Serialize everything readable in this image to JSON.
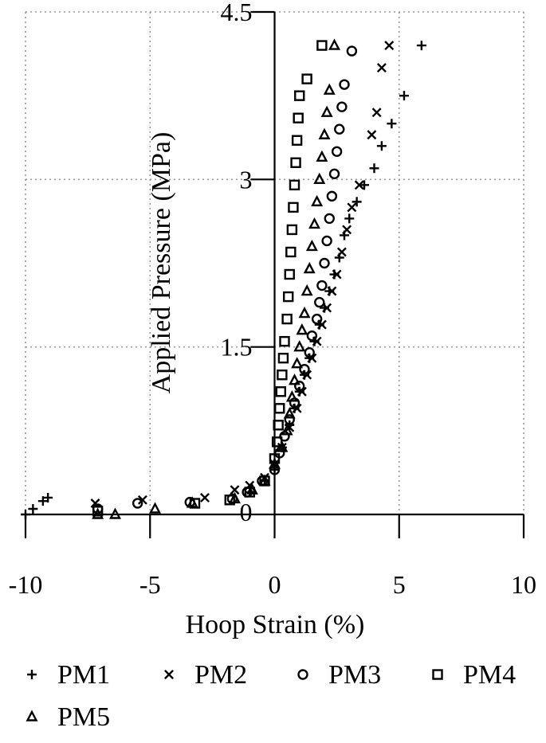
{
  "chart_data": {
    "type": "scatter",
    "title": "",
    "xlabel": "Hoop Strain (%)",
    "ylabel": "Applied Pressure (MPa)",
    "xlim": [
      -10,
      10
    ],
    "ylim": [
      0,
      4.5
    ],
    "x_ticks": [
      "-10",
      "-5",
      "0",
      "5",
      "10"
    ],
    "y_ticks": [
      "0",
      "1.5",
      "3",
      "4.5"
    ],
    "grid": true,
    "legend_position": "bottom",
    "series": [
      {
        "name": "PM1",
        "marker": "plus",
        "points": [
          [
            -10.0,
            0.0
          ],
          [
            -9.7,
            0.05
          ],
          [
            -9.3,
            0.12
          ],
          [
            -9.1,
            0.15
          ],
          [
            -1.0,
            0.2
          ],
          [
            -0.4,
            0.3
          ],
          [
            0.0,
            0.4
          ],
          [
            0.3,
            0.6
          ],
          [
            0.6,
            0.8
          ],
          [
            0.8,
            0.95
          ],
          [
            1.0,
            1.1
          ],
          [
            1.2,
            1.25
          ],
          [
            1.4,
            1.4
          ],
          [
            1.6,
            1.55
          ],
          [
            1.8,
            1.7
          ],
          [
            2.0,
            1.85
          ],
          [
            2.2,
            2.0
          ],
          [
            2.4,
            2.15
          ],
          [
            2.6,
            2.3
          ],
          [
            2.8,
            2.5
          ],
          [
            3.0,
            2.65
          ],
          [
            3.3,
            2.8
          ],
          [
            3.6,
            2.95
          ],
          [
            4.0,
            3.1
          ],
          [
            4.3,
            3.3
          ],
          [
            4.7,
            3.5
          ],
          [
            5.2,
            3.75
          ],
          [
            5.9,
            4.2
          ]
        ]
      },
      {
        "name": "PM2",
        "marker": "x",
        "points": [
          [
            -7.2,
            0.1
          ],
          [
            -5.3,
            0.13
          ],
          [
            -2.8,
            0.15
          ],
          [
            -1.6,
            0.22
          ],
          [
            -1.0,
            0.26
          ],
          [
            -0.4,
            0.33
          ],
          [
            0.0,
            0.45
          ],
          [
            0.3,
            0.6
          ],
          [
            0.6,
            0.78
          ],
          [
            0.9,
            0.95
          ],
          [
            1.1,
            1.1
          ],
          [
            1.3,
            1.25
          ],
          [
            1.5,
            1.4
          ],
          [
            1.7,
            1.55
          ],
          [
            1.9,
            1.7
          ],
          [
            2.1,
            1.85
          ],
          [
            2.3,
            2.0
          ],
          [
            2.5,
            2.15
          ],
          [
            2.7,
            2.35
          ],
          [
            2.9,
            2.55
          ],
          [
            3.1,
            2.75
          ],
          [
            3.4,
            2.95
          ],
          [
            3.9,
            3.4
          ],
          [
            4.1,
            3.6
          ],
          [
            4.3,
            4.0
          ],
          [
            4.6,
            4.2
          ]
        ]
      },
      {
        "name": "PM3",
        "marker": "circle",
        "points": [
          [
            -7.1,
            0.05
          ],
          [
            -5.5,
            0.1
          ],
          [
            -3.4,
            0.11
          ],
          [
            -1.7,
            0.14
          ],
          [
            -1.1,
            0.2
          ],
          [
            -0.5,
            0.3
          ],
          [
            0.0,
            0.4
          ],
          [
            0.2,
            0.55
          ],
          [
            0.4,
            0.7
          ],
          [
            0.6,
            0.85
          ],
          [
            0.8,
            1.0
          ],
          [
            1.0,
            1.15
          ],
          [
            1.2,
            1.3
          ],
          [
            1.4,
            1.45
          ],
          [
            1.5,
            1.6
          ],
          [
            1.7,
            1.75
          ],
          [
            1.8,
            1.9
          ],
          [
            1.9,
            2.05
          ],
          [
            2.0,
            2.25
          ],
          [
            2.1,
            2.45
          ],
          [
            2.2,
            2.65
          ],
          [
            2.3,
            2.85
          ],
          [
            2.4,
            3.05
          ],
          [
            2.5,
            3.25
          ],
          [
            2.6,
            3.45
          ],
          [
            2.7,
            3.65
          ],
          [
            2.8,
            3.85
          ],
          [
            3.1,
            4.15
          ]
        ]
      },
      {
        "name": "PM4",
        "marker": "square",
        "points": [
          [
            -7.1,
            0.03
          ],
          [
            -3.2,
            0.1
          ],
          [
            -1.8,
            0.13
          ],
          [
            -1.0,
            0.2
          ],
          [
            -0.4,
            0.3
          ],
          [
            0.0,
            0.5
          ],
          [
            0.1,
            0.65
          ],
          [
            0.15,
            0.8
          ],
          [
            0.2,
            0.95
          ],
          [
            0.25,
            1.1
          ],
          [
            0.3,
            1.25
          ],
          [
            0.35,
            1.4
          ],
          [
            0.4,
            1.55
          ],
          [
            0.5,
            1.75
          ],
          [
            0.55,
            1.95
          ],
          [
            0.6,
            2.15
          ],
          [
            0.65,
            2.35
          ],
          [
            0.7,
            2.55
          ],
          [
            0.75,
            2.75
          ],
          [
            0.8,
            2.95
          ],
          [
            0.85,
            3.15
          ],
          [
            0.9,
            3.35
          ],
          [
            0.95,
            3.55
          ],
          [
            1.0,
            3.75
          ],
          [
            1.3,
            3.9
          ],
          [
            1.9,
            4.2
          ]
        ]
      },
      {
        "name": "PM5",
        "marker": "triangle",
        "points": [
          [
            -7.1,
            0.0
          ],
          [
            -6.4,
            0.0
          ],
          [
            -4.8,
            0.05
          ],
          [
            -3.3,
            0.1
          ],
          [
            -1.6,
            0.14
          ],
          [
            -0.9,
            0.22
          ],
          [
            -0.4,
            0.3
          ],
          [
            0.0,
            0.45
          ],
          [
            0.3,
            0.6
          ],
          [
            0.5,
            0.75
          ],
          [
            0.6,
            0.9
          ],
          [
            0.7,
            1.05
          ],
          [
            0.8,
            1.2
          ],
          [
            0.9,
            1.35
          ],
          [
            1.0,
            1.5
          ],
          [
            1.1,
            1.65
          ],
          [
            1.2,
            1.8
          ],
          [
            1.3,
            2.0
          ],
          [
            1.4,
            2.2
          ],
          [
            1.5,
            2.4
          ],
          [
            1.6,
            2.6
          ],
          [
            1.7,
            2.8
          ],
          [
            1.8,
            3.0
          ],
          [
            1.9,
            3.2
          ],
          [
            2.0,
            3.4
          ],
          [
            2.1,
            3.6
          ],
          [
            2.2,
            3.8
          ],
          [
            2.4,
            4.2
          ]
        ]
      }
    ]
  }
}
